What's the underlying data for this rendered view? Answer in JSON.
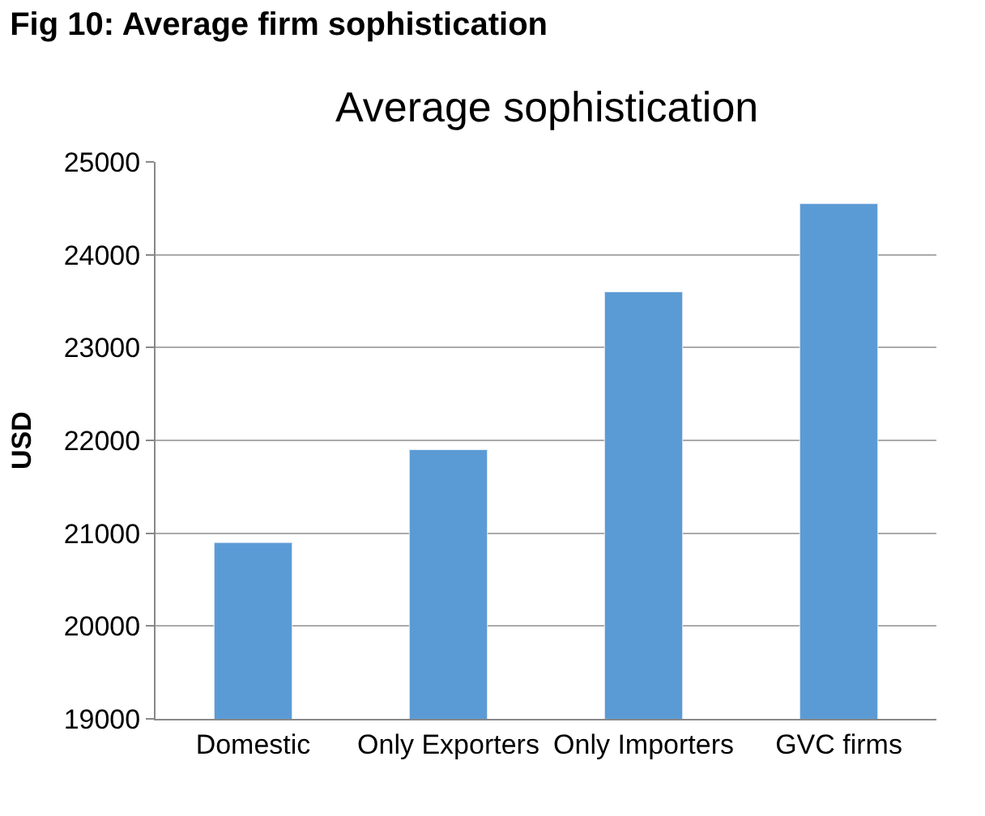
{
  "chart_data": {
    "type": "bar",
    "title": "Fig 10: Average firm sophistication",
    "subtitle": "Average sophistication",
    "ylabel": "USD",
    "categories": [
      "Domestic",
      "Only Exporters",
      "Only Importers",
      "GVC firms"
    ],
    "values": [
      20900,
      21900,
      23600,
      24550
    ],
    "color": "#5b9bd5",
    "ylim": [
      19000,
      25000
    ],
    "yticks": [
      19000,
      20000,
      21000,
      22000,
      23000,
      24000,
      25000
    ],
    "grid": "y"
  }
}
